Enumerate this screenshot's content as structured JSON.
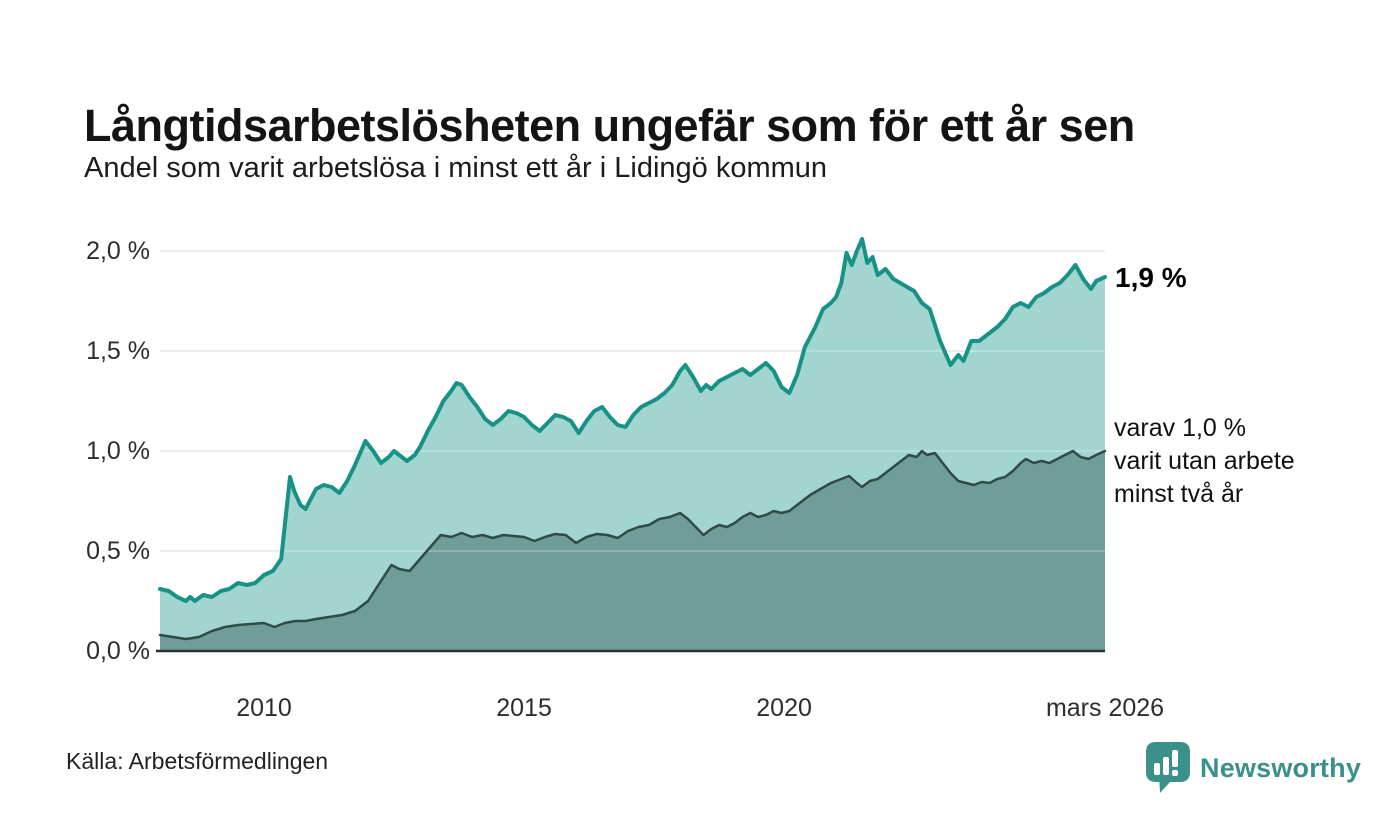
{
  "header": {
    "title": "Långtidsarbetslösheten ungefär som för ett år sen",
    "subtitle": "Andel som varit arbetslösa i minst ett år i Lidingö kommun"
  },
  "footer": {
    "source": "Källa: Arbetsförmedlingen",
    "brand": "Newsworthy"
  },
  "annotations": {
    "end_value_label": "1,9 %",
    "secondary_label_lines": [
      "varav 1,0 %",
      "varit utan arbete",
      "minst två år"
    ]
  },
  "chart_data": {
    "type": "area",
    "title": "Långtidsarbetslösheten ungefär som för ett år sen",
    "subtitle": "Andel som varit arbetslösa i minst ett år i Lidingö kommun",
    "unit": "%",
    "grid": true,
    "x_axis": {
      "range": [
        2008.0,
        2026.17
      ],
      "ticks": [
        {
          "x": 2010,
          "label": "2010"
        },
        {
          "x": 2015,
          "label": "2015"
        },
        {
          "x": 2020,
          "label": "2020"
        },
        {
          "x": 2026.17,
          "label": "mars 2026"
        }
      ]
    },
    "y_axis": {
      "range": [
        0,
        2.15
      ],
      "ticks": [
        {
          "v": 2.0,
          "label": "2,0 %"
        },
        {
          "v": 1.5,
          "label": "1,5 %"
        },
        {
          "v": 1.0,
          "label": "1,0 %"
        },
        {
          "v": 0.5,
          "label": "0,5 %"
        },
        {
          "v": 0.0,
          "label": "0,0 %"
        }
      ]
    },
    "colors": {
      "series1_line": "#179286",
      "series1_fill": "#a2d5cf",
      "series2_line": "#2e4b47",
      "series2_fill": "#6f9e99",
      "gridline": "#dcdde2",
      "axis": "#2f2f2f",
      "brand_teal": "#3b9189"
    },
    "series": [
      {
        "name": "Arbetslösa minst ett år",
        "end_value": 1.9,
        "points": [
          [
            2008.0,
            0.31
          ],
          [
            2008.17,
            0.3
          ],
          [
            2008.33,
            0.27
          ],
          [
            2008.5,
            0.25
          ],
          [
            2008.58,
            0.27
          ],
          [
            2008.67,
            0.25
          ],
          [
            2008.83,
            0.28
          ],
          [
            2009.0,
            0.27
          ],
          [
            2009.17,
            0.3
          ],
          [
            2009.33,
            0.31
          ],
          [
            2009.5,
            0.34
          ],
          [
            2009.67,
            0.33
          ],
          [
            2009.83,
            0.34
          ],
          [
            2010.0,
            0.38
          ],
          [
            2010.17,
            0.4
          ],
          [
            2010.33,
            0.46
          ],
          [
            2010.5,
            0.87
          ],
          [
            2010.58,
            0.8
          ],
          [
            2010.7,
            0.73
          ],
          [
            2010.8,
            0.71
          ],
          [
            2011.0,
            0.81
          ],
          [
            2011.15,
            0.83
          ],
          [
            2011.3,
            0.82
          ],
          [
            2011.45,
            0.79
          ],
          [
            2011.6,
            0.85
          ],
          [
            2011.75,
            0.93
          ],
          [
            2011.95,
            1.05
          ],
          [
            2012.1,
            1.0
          ],
          [
            2012.25,
            0.94
          ],
          [
            2012.4,
            0.97
          ],
          [
            2012.5,
            1.0
          ],
          [
            2012.6,
            0.98
          ],
          [
            2012.75,
            0.95
          ],
          [
            2012.9,
            0.98
          ],
          [
            2013.0,
            1.02
          ],
          [
            2013.15,
            1.1
          ],
          [
            2013.3,
            1.17
          ],
          [
            2013.45,
            1.25
          ],
          [
            2013.6,
            1.3
          ],
          [
            2013.7,
            1.34
          ],
          [
            2013.8,
            1.33
          ],
          [
            2013.95,
            1.27
          ],
          [
            2014.1,
            1.22
          ],
          [
            2014.25,
            1.16
          ],
          [
            2014.4,
            1.13
          ],
          [
            2014.55,
            1.16
          ],
          [
            2014.7,
            1.2
          ],
          [
            2014.85,
            1.19
          ],
          [
            2015.0,
            1.17
          ],
          [
            2015.15,
            1.13
          ],
          [
            2015.3,
            1.1
          ],
          [
            2015.45,
            1.14
          ],
          [
            2015.6,
            1.18
          ],
          [
            2015.75,
            1.17
          ],
          [
            2015.9,
            1.15
          ],
          [
            2016.05,
            1.09
          ],
          [
            2016.2,
            1.15
          ],
          [
            2016.35,
            1.2
          ],
          [
            2016.5,
            1.22
          ],
          [
            2016.65,
            1.17
          ],
          [
            2016.8,
            1.13
          ],
          [
            2016.95,
            1.12
          ],
          [
            2017.1,
            1.18
          ],
          [
            2017.25,
            1.22
          ],
          [
            2017.4,
            1.24
          ],
          [
            2017.55,
            1.26
          ],
          [
            2017.7,
            1.29
          ],
          [
            2017.85,
            1.33
          ],
          [
            2018.0,
            1.4
          ],
          [
            2018.1,
            1.43
          ],
          [
            2018.25,
            1.37
          ],
          [
            2018.4,
            1.3
          ],
          [
            2018.5,
            1.33
          ],
          [
            2018.6,
            1.31
          ],
          [
            2018.75,
            1.35
          ],
          [
            2018.9,
            1.37
          ],
          [
            2019.05,
            1.39
          ],
          [
            2019.2,
            1.41
          ],
          [
            2019.35,
            1.38
          ],
          [
            2019.5,
            1.41
          ],
          [
            2019.65,
            1.44
          ],
          [
            2019.8,
            1.4
          ],
          [
            2019.95,
            1.32
          ],
          [
            2020.1,
            1.29
          ],
          [
            2020.25,
            1.38
          ],
          [
            2020.4,
            1.52
          ],
          [
            2020.6,
            1.62
          ],
          [
            2020.75,
            1.71
          ],
          [
            2020.9,
            1.74
          ],
          [
            2021.0,
            1.77
          ],
          [
            2021.1,
            1.84
          ],
          [
            2021.2,
            1.99
          ],
          [
            2021.3,
            1.93
          ],
          [
            2021.4,
            2.0
          ],
          [
            2021.5,
            2.06
          ],
          [
            2021.6,
            1.94
          ],
          [
            2021.7,
            1.97
          ],
          [
            2021.8,
            1.88
          ],
          [
            2021.95,
            1.91
          ],
          [
            2022.1,
            1.86
          ],
          [
            2022.3,
            1.83
          ],
          [
            2022.5,
            1.8
          ],
          [
            2022.65,
            1.74
          ],
          [
            2022.8,
            1.71
          ],
          [
            2023.0,
            1.55
          ],
          [
            2023.2,
            1.43
          ],
          [
            2023.35,
            1.48
          ],
          [
            2023.45,
            1.45
          ],
          [
            2023.6,
            1.55
          ],
          [
            2023.75,
            1.55
          ],
          [
            2023.9,
            1.58
          ],
          [
            2024.1,
            1.62
          ],
          [
            2024.25,
            1.66
          ],
          [
            2024.4,
            1.72
          ],
          [
            2024.55,
            1.74
          ],
          [
            2024.7,
            1.72
          ],
          [
            2024.85,
            1.77
          ],
          [
            2025.0,
            1.79
          ],
          [
            2025.15,
            1.82
          ],
          [
            2025.3,
            1.84
          ],
          [
            2025.45,
            1.88
          ],
          [
            2025.6,
            1.93
          ],
          [
            2025.75,
            1.86
          ],
          [
            2025.9,
            1.81
          ],
          [
            2026.0,
            1.85
          ],
          [
            2026.17,
            1.87
          ]
        ]
      },
      {
        "name": "varav utan arbete minst två år",
        "end_value": 1.0,
        "points": [
          [
            2008.0,
            0.08
          ],
          [
            2008.25,
            0.07
          ],
          [
            2008.5,
            0.06
          ],
          [
            2008.75,
            0.07
          ],
          [
            2009.0,
            0.1
          ],
          [
            2009.25,
            0.12
          ],
          [
            2009.5,
            0.13
          ],
          [
            2009.75,
            0.135
          ],
          [
            2010.0,
            0.14
          ],
          [
            2010.2,
            0.12
          ],
          [
            2010.4,
            0.14
          ],
          [
            2010.6,
            0.15
          ],
          [
            2010.8,
            0.15
          ],
          [
            2011.0,
            0.16
          ],
          [
            2011.25,
            0.17
          ],
          [
            2011.5,
            0.18
          ],
          [
            2011.75,
            0.2
          ],
          [
            2012.0,
            0.25
          ],
          [
            2012.2,
            0.33
          ],
          [
            2012.45,
            0.43
          ],
          [
            2012.6,
            0.41
          ],
          [
            2012.8,
            0.4
          ],
          [
            2013.0,
            0.46
          ],
          [
            2013.2,
            0.52
          ],
          [
            2013.4,
            0.58
          ],
          [
            2013.6,
            0.57
          ],
          [
            2013.8,
            0.59
          ],
          [
            2014.0,
            0.57
          ],
          [
            2014.2,
            0.58
          ],
          [
            2014.4,
            0.565
          ],
          [
            2014.6,
            0.58
          ],
          [
            2014.8,
            0.575
          ],
          [
            2015.0,
            0.57
          ],
          [
            2015.2,
            0.55
          ],
          [
            2015.4,
            0.57
          ],
          [
            2015.6,
            0.585
          ],
          [
            2015.8,
            0.58
          ],
          [
            2016.0,
            0.54
          ],
          [
            2016.2,
            0.57
          ],
          [
            2016.4,
            0.585
          ],
          [
            2016.6,
            0.58
          ],
          [
            2016.8,
            0.565
          ],
          [
            2017.0,
            0.6
          ],
          [
            2017.2,
            0.62
          ],
          [
            2017.4,
            0.63
          ],
          [
            2017.6,
            0.66
          ],
          [
            2017.8,
            0.67
          ],
          [
            2018.0,
            0.69
          ],
          [
            2018.15,
            0.66
          ],
          [
            2018.3,
            0.62
          ],
          [
            2018.45,
            0.58
          ],
          [
            2018.6,
            0.61
          ],
          [
            2018.75,
            0.63
          ],
          [
            2018.9,
            0.62
          ],
          [
            2019.05,
            0.64
          ],
          [
            2019.2,
            0.67
          ],
          [
            2019.35,
            0.69
          ],
          [
            2019.5,
            0.67
          ],
          [
            2019.65,
            0.68
          ],
          [
            2019.8,
            0.7
          ],
          [
            2019.95,
            0.69
          ],
          [
            2020.1,
            0.7
          ],
          [
            2020.3,
            0.74
          ],
          [
            2020.5,
            0.78
          ],
          [
            2020.7,
            0.81
          ],
          [
            2020.9,
            0.84
          ],
          [
            2021.1,
            0.86
          ],
          [
            2021.25,
            0.875
          ],
          [
            2021.4,
            0.84
          ],
          [
            2021.5,
            0.82
          ],
          [
            2021.65,
            0.85
          ],
          [
            2021.8,
            0.86
          ],
          [
            2022.0,
            0.9
          ],
          [
            2022.2,
            0.94
          ],
          [
            2022.4,
            0.98
          ],
          [
            2022.55,
            0.97
          ],
          [
            2022.65,
            1.0
          ],
          [
            2022.75,
            0.98
          ],
          [
            2022.9,
            0.99
          ],
          [
            2023.05,
            0.94
          ],
          [
            2023.2,
            0.89
          ],
          [
            2023.35,
            0.85
          ],
          [
            2023.5,
            0.84
          ],
          [
            2023.65,
            0.83
          ],
          [
            2023.8,
            0.845
          ],
          [
            2023.95,
            0.84
          ],
          [
            2024.1,
            0.86
          ],
          [
            2024.25,
            0.87
          ],
          [
            2024.4,
            0.9
          ],
          [
            2024.55,
            0.94
          ],
          [
            2024.65,
            0.96
          ],
          [
            2024.8,
            0.94
          ],
          [
            2024.95,
            0.95
          ],
          [
            2025.1,
            0.94
          ],
          [
            2025.25,
            0.96
          ],
          [
            2025.4,
            0.98
          ],
          [
            2025.55,
            1.0
          ],
          [
            2025.7,
            0.97
          ],
          [
            2025.85,
            0.96
          ],
          [
            2026.0,
            0.98
          ],
          [
            2026.17,
            1.0
          ]
        ]
      }
    ]
  }
}
